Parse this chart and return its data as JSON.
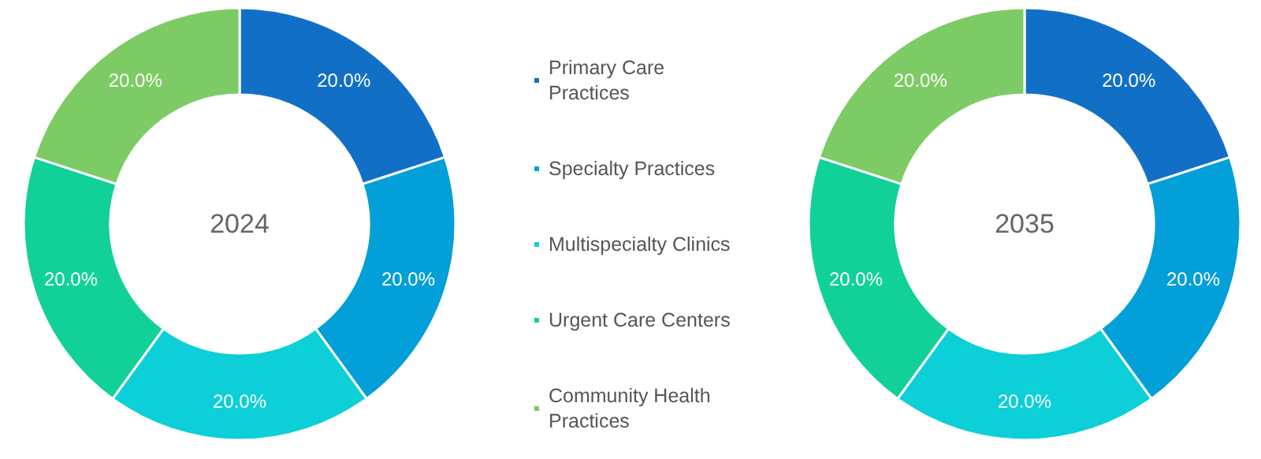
{
  "chart_data": {
    "type": "donut",
    "categories": [
      "Primary Care Practices",
      "Specialty Practices",
      "Multispecialty Clinics",
      "Urgent Care Centers",
      "Community Health Practices"
    ],
    "colors": [
      "#1170c6",
      "#039fd8",
      "#0ccfd8",
      "#12d198",
      "#7dcb64"
    ],
    "legend": "right",
    "series": [
      {
        "name": "2024",
        "values": [
          20.0,
          20.0,
          20.0,
          20.0,
          20.0
        ],
        "value_labels": [
          "20.0%",
          "20.0%",
          "20.0%",
          "20.0%",
          "20.0%"
        ]
      },
      {
        "name": "2035",
        "values": [
          20.0,
          20.0,
          20.0,
          20.0,
          20.0
        ],
        "value_labels": [
          "20.0%",
          "20.0%",
          "20.0%",
          "20.0%",
          "20.0%"
        ]
      }
    ]
  }
}
